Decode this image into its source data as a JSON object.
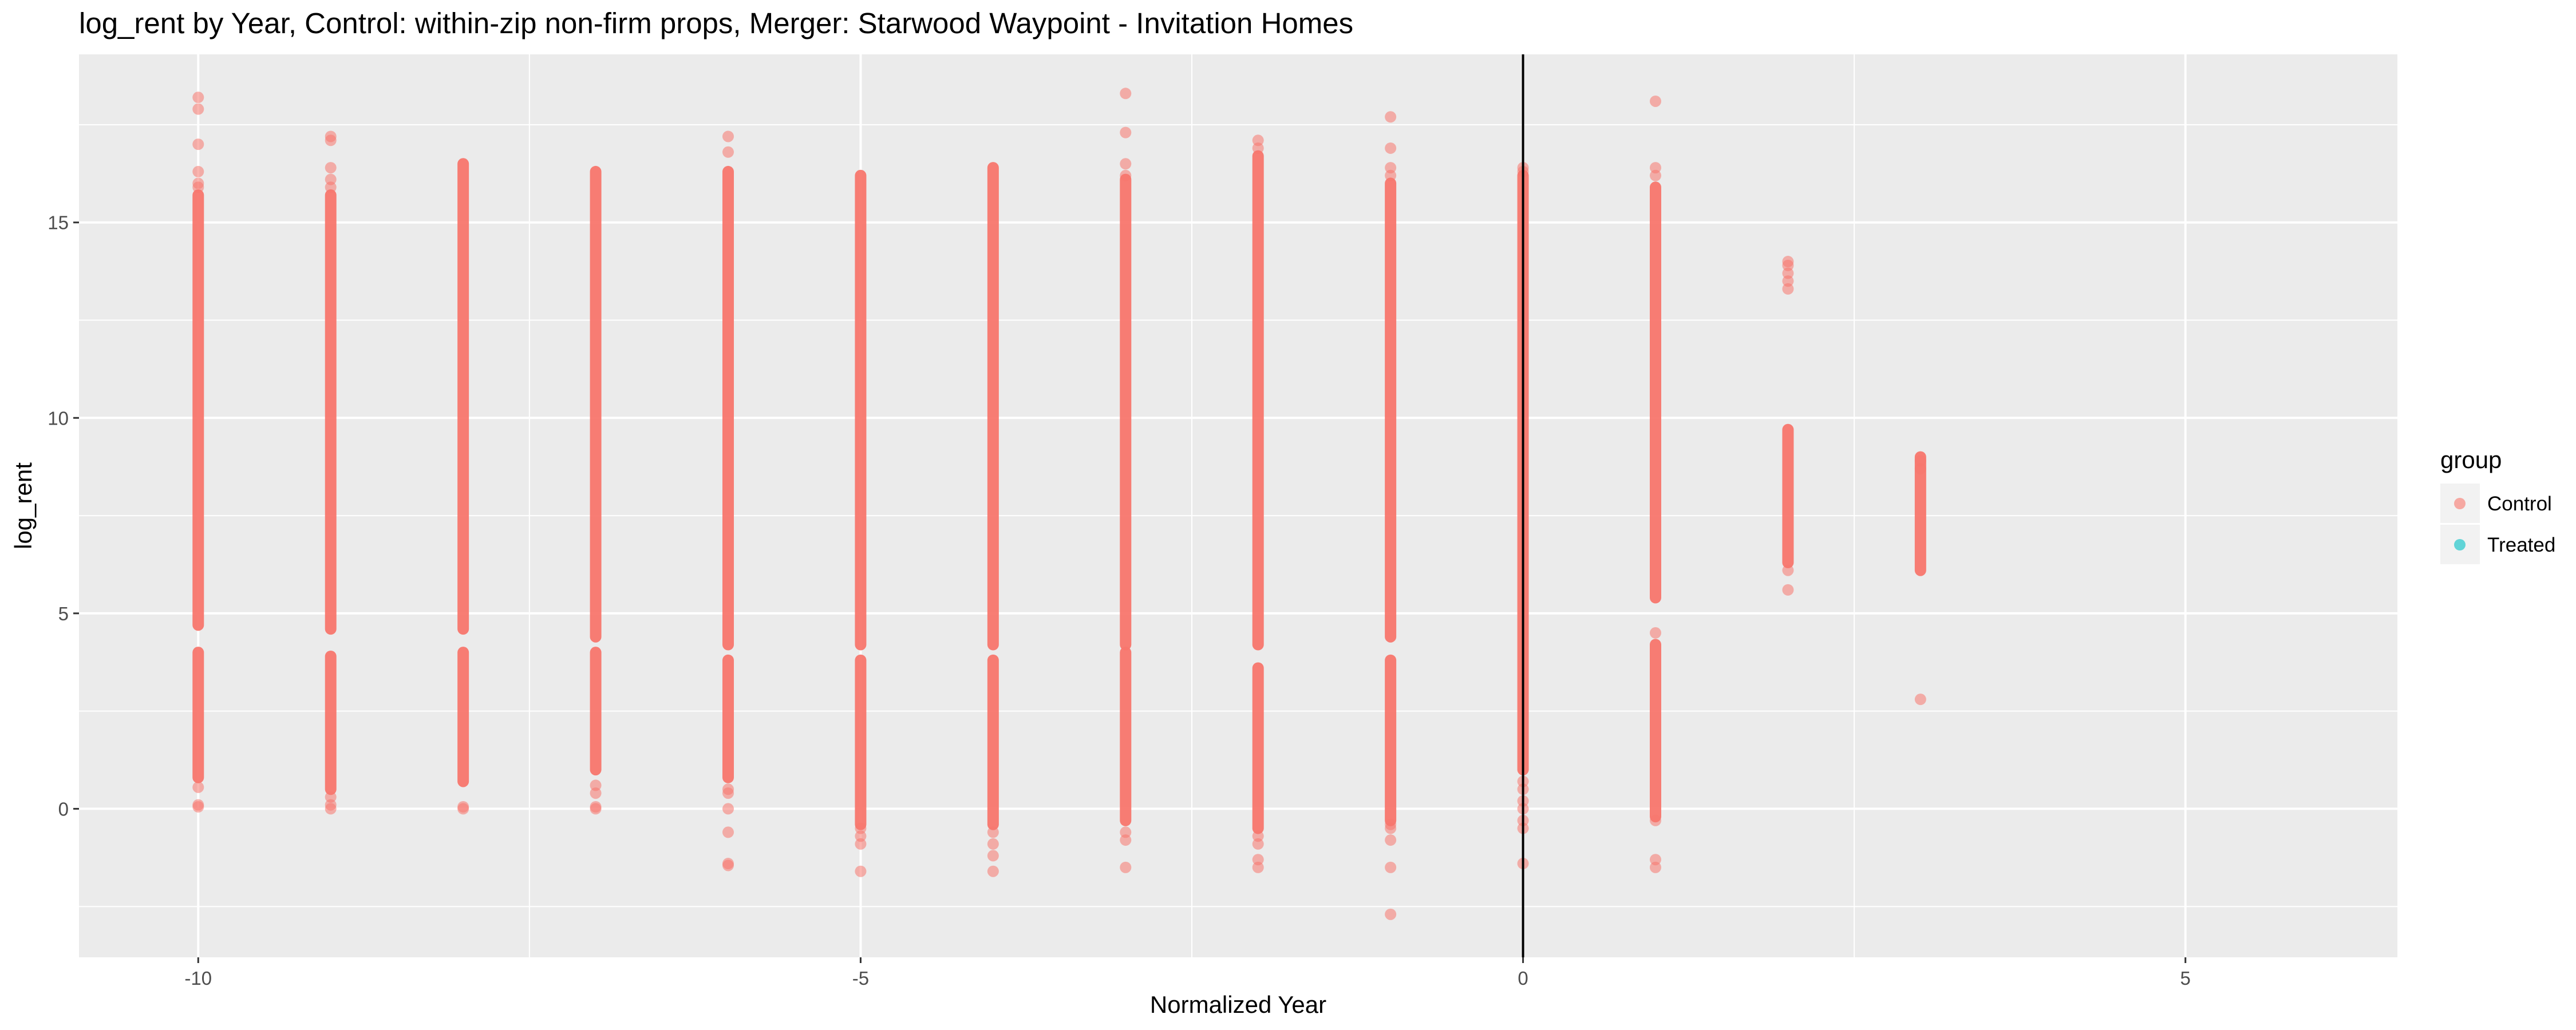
{
  "chart_data": {
    "type": "scatter",
    "title": "log_rent by Year, Control: within-zip non-firm props, Merger: Starwood Waypoint - Invitation Homes",
    "xlabel": "Normalized Year",
    "ylabel": "log_rent",
    "xlim": [
      -10.9,
      6.6
    ],
    "ylim": [
      -3.8,
      19.3
    ],
    "x_ticks": [
      -10,
      -5,
      0,
      5
    ],
    "x_tick_labels": [
      "-10",
      "-5",
      "0",
      "5"
    ],
    "y_ticks": [
      0,
      5,
      10,
      15
    ],
    "y_tick_labels": [
      "0",
      "5",
      "10",
      "15"
    ],
    "grid": true,
    "vline_x": 0,
    "legend": {
      "title": "group",
      "position": "right",
      "entries": [
        {
          "label": "Control",
          "color": "#F8766D"
        },
        {
          "label": "Treated",
          "color": "#00BFC4"
        }
      ]
    },
    "series": [
      {
        "name": "Control",
        "color": "#F8766D",
        "columns": [
          {
            "x": -10,
            "ranges": [
              [
                0.8,
                4.0
              ],
              [
                4.7,
                15.7
              ]
            ],
            "points": [
              18.2,
              17.9,
              17.0,
              16.3,
              16.0,
              15.9,
              0.55,
              0.1,
              0.05
            ]
          },
          {
            "x": -9,
            "ranges": [
              [
                0.5,
                3.9
              ],
              [
                4.6,
                15.7
              ]
            ],
            "points": [
              17.2,
              17.1,
              16.4,
              16.1,
              15.9,
              0.3,
              0.1,
              0.0
            ]
          },
          {
            "x": -8,
            "ranges": [
              [
                0.7,
                4.0
              ],
              [
                4.6,
                16.5
              ]
            ],
            "points": [
              0.05,
              0.0
            ]
          },
          {
            "x": -7,
            "ranges": [
              [
                1.0,
                4.0
              ],
              [
                4.4,
                16.3
              ]
            ],
            "points": [
              0.6,
              0.4,
              0.05,
              0.0
            ]
          },
          {
            "x": -6,
            "ranges": [
              [
                0.8,
                3.8
              ],
              [
                4.2,
                16.3
              ]
            ],
            "points": [
              17.2,
              16.8,
              0.5,
              0.4,
              0.0,
              -0.6,
              -1.4,
              -1.45
            ]
          },
          {
            "x": -5,
            "ranges": [
              [
                -0.4,
                3.8
              ],
              [
                4.2,
                16.2
              ]
            ],
            "points": [
              -0.5,
              -0.7,
              -0.9,
              -1.6
            ]
          },
          {
            "x": -4,
            "ranges": [
              [
                -0.4,
                3.8
              ],
              [
                4.2,
                16.4
              ]
            ],
            "points": [
              -0.6,
              -0.9,
              -1.2,
              -1.6
            ]
          },
          {
            "x": -3,
            "ranges": [
              [
                -0.3,
                4.0
              ],
              [
                4.2,
                16.1
              ]
            ],
            "points": [
              18.3,
              17.3,
              16.5,
              16.2,
              -0.6,
              -0.8,
              -1.5
            ]
          },
          {
            "x": -2,
            "ranges": [
              [
                -0.5,
                3.6
              ],
              [
                4.2,
                16.7
              ]
            ],
            "points": [
              17.1,
              16.9,
              -0.7,
              -0.9,
              -1.3,
              -1.5
            ]
          },
          {
            "x": -1,
            "ranges": [
              [
                -0.3,
                3.8
              ],
              [
                4.4,
                16.0
              ]
            ],
            "points": [
              17.7,
              16.9,
              16.4,
              16.2,
              -0.4,
              -0.5,
              -0.8,
              -1.5,
              -2.7
            ]
          },
          {
            "x": 0,
            "ranges": [
              [
                1.0,
                16.2
              ]
            ],
            "points": [
              16.4,
              16.3,
              0.7,
              0.5,
              0.2,
              0.0,
              -0.3,
              -0.5,
              -1.4
            ]
          },
          {
            "x": 1,
            "ranges": [
              [
                -0.2,
                4.2
              ],
              [
                5.4,
                15.9
              ]
            ],
            "points": [
              18.1,
              16.4,
              16.2,
              4.5,
              -0.3,
              -1.3,
              -1.5
            ]
          },
          {
            "x": 2,
            "ranges": [
              [
                6.3,
                9.7
              ]
            ],
            "points": [
              14.0,
              13.9,
              13.7,
              13.5,
              13.3,
              6.1,
              5.6
            ]
          },
          {
            "x": 3,
            "ranges": [
              [
                6.1,
                9.0
              ]
            ],
            "points": [
              8.9,
              8.7,
              2.8
            ]
          }
        ]
      },
      {
        "name": "Treated",
        "color": "#00BFC4",
        "columns": []
      }
    ]
  }
}
